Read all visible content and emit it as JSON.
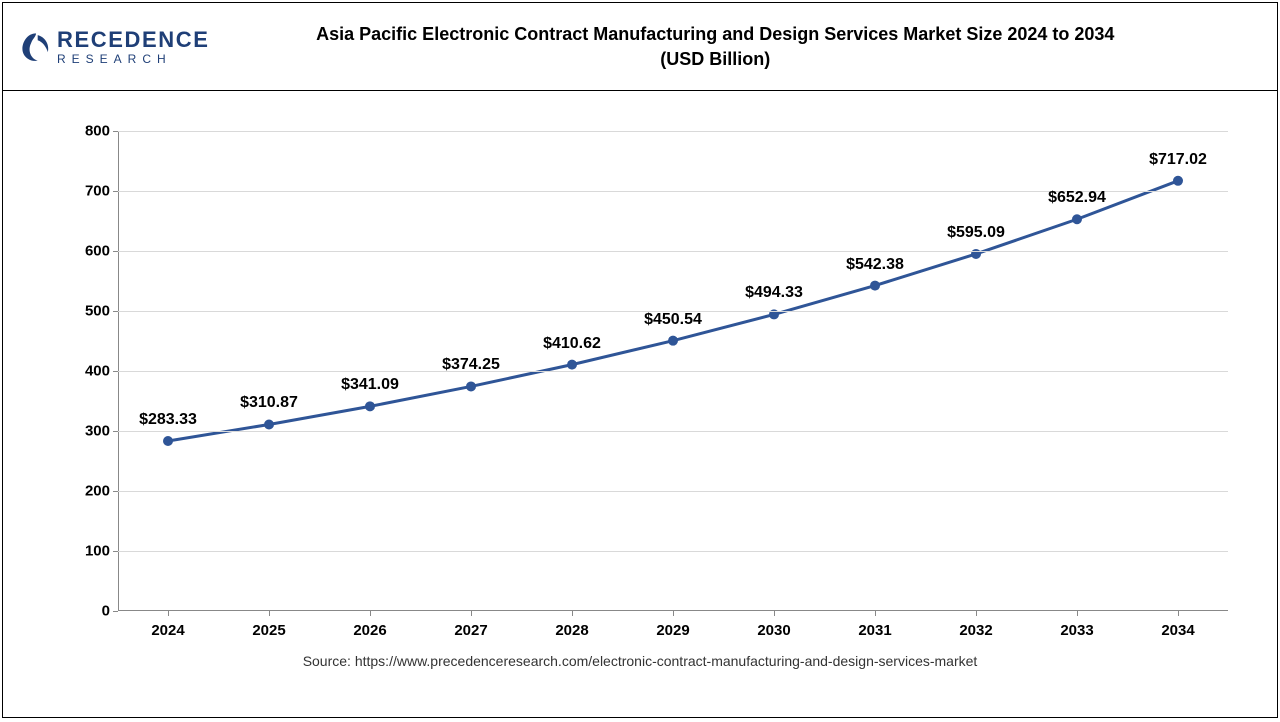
{
  "logo": {
    "name_upper": "RECEDENCE",
    "name_lower": "RESEARCH",
    "accent_color": "#1f3f77"
  },
  "title_line1": "Asia Pacific Electronic Contract Manufacturing and Design Services Market Size 2024 to 2034",
  "title_line2": "(USD Billion)",
  "source_text": "Source: https://www.precedenceresearch.com/electronic-contract-manufacturing-and-design-services-market",
  "chart": {
    "type": "line",
    "background_color": "#ffffff",
    "grid_color": "#d9d9d9",
    "axis_color": "#888888",
    "line_color": "#2f5597",
    "line_width": 3,
    "marker_color": "#2f5597",
    "marker_radius": 5,
    "label_fontsize": 16,
    "tick_fontsize": 15,
    "ylim": [
      0,
      800
    ],
    "ytick_step": 100,
    "yticks": [
      0,
      100,
      200,
      300,
      400,
      500,
      600,
      700,
      800
    ],
    "categories": [
      "2024",
      "2025",
      "2026",
      "2027",
      "2028",
      "2029",
      "2030",
      "2031",
      "2032",
      "2033",
      "2034"
    ],
    "values": [
      283.33,
      310.87,
      341.09,
      374.25,
      410.62,
      450.54,
      494.33,
      542.38,
      595.09,
      652.94,
      717.02
    ],
    "data_labels": [
      "$283.33",
      "$310.87",
      "$341.09",
      "$374.25",
      "$410.62",
      "$450.54",
      "$494.33",
      "$542.38",
      "$595.09",
      "$652.94",
      "$717.02"
    ]
  }
}
